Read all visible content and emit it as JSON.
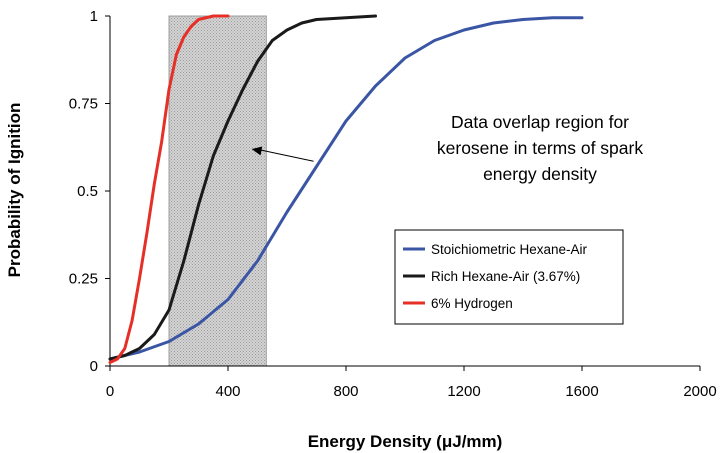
{
  "chart_data": {
    "type": "line",
    "xlabel": "Energy Density (μJ/mm)",
    "ylabel": "Probability of Ignition",
    "xlim": [
      0,
      2000
    ],
    "ylim": [
      0,
      1
    ],
    "x_ticks": [
      "0",
      "400",
      "800",
      "1200",
      "1600",
      "2000"
    ],
    "y_ticks": [
      "0",
      "0.25",
      "0.5",
      "0.75",
      "1"
    ],
    "grid": false,
    "legend_position": "lower-right",
    "shaded_region": {
      "x_from": 200,
      "x_to": 530,
      "color": "#c8c8c8"
    },
    "annotation": {
      "lines": [
        "Data overlap region for",
        "kerosene in terms of spark",
        "energy density"
      ],
      "arrow_from": [
        690,
        0.585
      ],
      "arrow_to": [
        480,
        0.62
      ]
    },
    "series": [
      {
        "name": "Stoichiometric Hexane-Air",
        "color": "#3a55a4",
        "points": [
          [
            0,
            0.02
          ],
          [
            100,
            0.04
          ],
          [
            200,
            0.07
          ],
          [
            300,
            0.12
          ],
          [
            400,
            0.19
          ],
          [
            500,
            0.3
          ],
          [
            600,
            0.44
          ],
          [
            700,
            0.57
          ],
          [
            800,
            0.7
          ],
          [
            900,
            0.8
          ],
          [
            1000,
            0.88
          ],
          [
            1100,
            0.93
          ],
          [
            1200,
            0.96
          ],
          [
            1300,
            0.98
          ],
          [
            1400,
            0.99
          ],
          [
            1500,
            0.995
          ],
          [
            1600,
            0.995
          ]
        ]
      },
      {
        "name": "Rich Hexane-Air (3.67%)",
        "color": "#1a1a1a",
        "points": [
          [
            0,
            0.02
          ],
          [
            50,
            0.03
          ],
          [
            100,
            0.05
          ],
          [
            150,
            0.09
          ],
          [
            200,
            0.16
          ],
          [
            250,
            0.3
          ],
          [
            300,
            0.46
          ],
          [
            350,
            0.6
          ],
          [
            400,
            0.7
          ],
          [
            450,
            0.79
          ],
          [
            500,
            0.87
          ],
          [
            550,
            0.93
          ],
          [
            600,
            0.96
          ],
          [
            650,
            0.98
          ],
          [
            700,
            0.99
          ],
          [
            800,
            0.995
          ],
          [
            900,
            1.0
          ]
        ]
      },
      {
        "name": "6% Hydrogen",
        "color": "#e63027",
        "points": [
          [
            0,
            0.01
          ],
          [
            25,
            0.02
          ],
          [
            50,
            0.05
          ],
          [
            75,
            0.13
          ],
          [
            100,
            0.25
          ],
          [
            125,
            0.38
          ],
          [
            150,
            0.52
          ],
          [
            175,
            0.64
          ],
          [
            200,
            0.79
          ],
          [
            225,
            0.89
          ],
          [
            250,
            0.94
          ],
          [
            275,
            0.97
          ],
          [
            300,
            0.99
          ],
          [
            350,
            1.0
          ],
          [
            400,
            1.0
          ]
        ]
      }
    ]
  }
}
